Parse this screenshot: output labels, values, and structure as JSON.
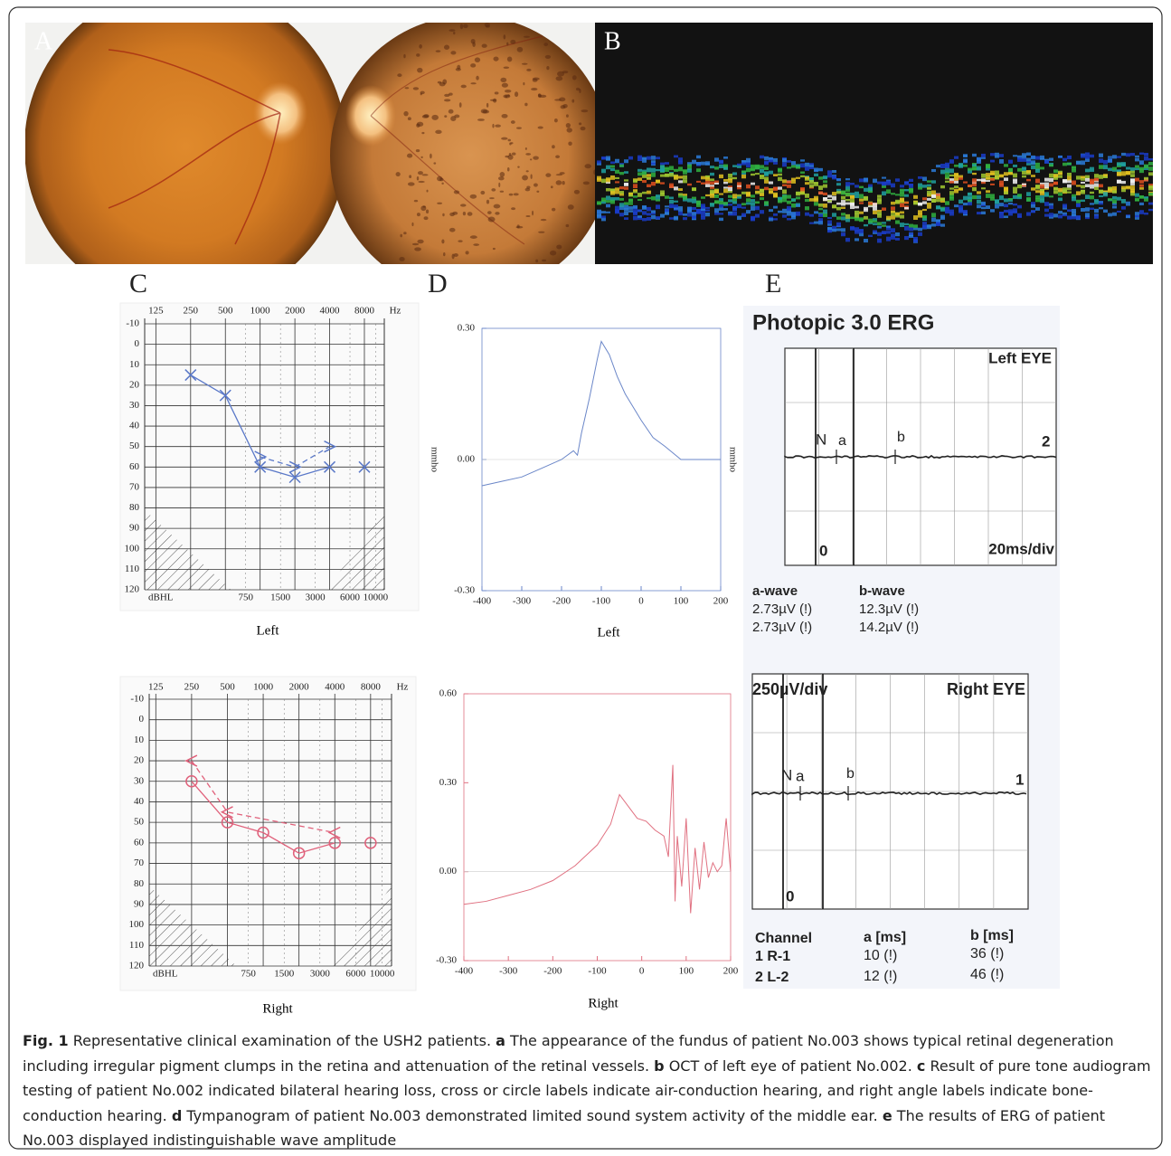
{
  "panel_labels": [
    "A",
    "B",
    "C",
    "D",
    "E"
  ],
  "audiograms": [
    {
      "title": "Left",
      "freq_ticks": [
        125,
        250,
        500,
        1000,
        2000,
        4000,
        8000
      ],
      "freq_unit": "Hz",
      "mid_ticks": [
        750,
        1500,
        3000,
        6000,
        10000
      ],
      "level_unit": "dBHL",
      "xlim": [
        100,
        11900
      ],
      "ylim": [
        -10,
        120
      ],
      "yticks": [
        -10,
        0,
        10,
        20,
        30,
        40,
        50,
        60,
        70,
        80,
        90,
        100,
        110,
        120
      ],
      "color": "#5a78c8",
      "series": [
        {
          "marker": "x",
          "x": [
            250,
            500,
            1000,
            2000,
            4000
          ],
          "values": [
            15,
            25,
            60,
            65,
            60
          ]
        },
        {
          "marker": "x",
          "line": false,
          "x": [
            8000
          ],
          "values": [
            60
          ]
        },
        {
          "marker": ">",
          "dashed": true,
          "x": [
            1000,
            2000,
            4000
          ],
          "values": [
            55,
            60,
            50
          ]
        }
      ]
    },
    {
      "title": "Right",
      "freq_ticks": [
        125,
        250,
        500,
        1000,
        2000,
        4000,
        8000
      ],
      "freq_unit": "Hz",
      "mid_ticks": [
        750,
        1500,
        3000,
        6000,
        10000
      ],
      "level_unit": "dBHL",
      "xlim": [
        110,
        12000
      ],
      "ylim": [
        -10,
        120
      ],
      "yticks": [
        -10,
        0,
        10,
        20,
        30,
        40,
        50,
        60,
        70,
        80,
        90,
        100,
        110,
        120
      ],
      "color": "#e0607a",
      "series": [
        {
          "marker": "o",
          "x": [
            250,
            500,
            1000,
            2000,
            4000
          ],
          "values": [
            30,
            50,
            55,
            65,
            60
          ]
        },
        {
          "marker": "o",
          "line": false,
          "x": [
            8000
          ],
          "values": [
            60
          ]
        },
        {
          "marker": "<",
          "dashed": true,
          "x": [
            250,
            500,
            4000
          ],
          "values": [
            20,
            45,
            55
          ]
        }
      ]
    }
  ],
  "tympanograms": [
    {
      "title": "Left",
      "ylabel": "mmho",
      "color": "#6a86c8",
      "xlim": [
        -400,
        200
      ],
      "ylim": [
        -0.3,
        0.3
      ],
      "xticks": [
        -400,
        -300,
        -200,
        -100,
        0,
        100,
        200
      ],
      "yticks": [
        {
          "value": 0.3,
          "label": "0.30"
        },
        {
          "value": 0,
          "label": "0.00"
        },
        {
          "value": -0.3,
          "label": "-0.30"
        }
      ],
      "x": [
        -400,
        -350,
        -300,
        -250,
        -200,
        -170,
        -160,
        -150,
        -130,
        -110,
        -100,
        -80,
        -60,
        -40,
        -20,
        0,
        30,
        60,
        100,
        150,
        200
      ],
      "values": [
        -0.06,
        -0.05,
        -0.04,
        -0.02,
        0.0,
        0.02,
        0.01,
        0.06,
        0.14,
        0.23,
        0.27,
        0.24,
        0.19,
        0.15,
        0.12,
        0.09,
        0.05,
        0.03,
        0.0,
        0.0,
        0.0
      ]
    },
    {
      "title": "Right",
      "color": "#e07080",
      "xlim": [
        -400,
        200
      ],
      "ylim": [
        -0.3,
        0.6
      ],
      "xticks": [
        -400,
        -300,
        -200,
        -100,
        0,
        100,
        200
      ],
      "yticks": [
        {
          "value": 0.6,
          "label": "0.60"
        },
        {
          "value": 0.3,
          "label": "0.30"
        },
        {
          "value": 0,
          "label": "0.00"
        },
        {
          "value": -0.3,
          "label": "-0.30"
        }
      ],
      "x": [
        -400,
        -350,
        -300,
        -250,
        -200,
        -150,
        -100,
        -70,
        -50,
        -30,
        -10,
        10,
        30,
        50,
        60,
        70,
        75,
        80,
        90,
        100,
        110,
        120,
        130,
        140,
        150,
        160,
        170,
        180,
        190,
        200
      ],
      "values": [
        -0.11,
        -0.1,
        -0.08,
        -0.06,
        -0.03,
        0.02,
        0.09,
        0.16,
        0.26,
        0.22,
        0.18,
        0.17,
        0.14,
        0.12,
        0.05,
        0.36,
        -0.1,
        0.12,
        -0.05,
        0.18,
        -0.14,
        0.08,
        -0.06,
        0.1,
        -0.02,
        0.03,
        0.0,
        0.02,
        0.18,
        0.0
      ]
    }
  ],
  "erg": {
    "title": "Photopic 3.0 ERG",
    "left": {
      "eye": "Left EYE",
      "n": "N",
      "a": "a",
      "b": "b",
      "channel": "2",
      "zero": "0",
      "scale": "20ms/div"
    },
    "amplitudes": {
      "header": [
        "a-wave",
        "b-wave"
      ],
      "rows": [
        [
          "2.73µV (!)",
          "12.3µV (!)"
        ],
        [
          "2.73µV (!)",
          "14.2µV (!)"
        ]
      ]
    },
    "right": {
      "scale": "250µV/div",
      "eye": "Right EYE",
      "n": "N",
      "a": "a",
      "b": "b",
      "channel": "1",
      "zero": "0"
    },
    "latency": {
      "header": [
        "Channel",
        "a [ms]",
        "b [ms]"
      ],
      "rows": [
        [
          "1 R-1",
          "10 (!)",
          "36 (!)"
        ],
        [
          "2 L-2",
          "12 (!)",
          "46 (!)"
        ]
      ]
    }
  },
  "caption": {
    "figure": "Fig. 1",
    "intro": "Representative clinical examination of the USH2 patients.",
    "items": [
      {
        "key": "a",
        "text": "The appearance of the fundus of patient No.003 shows typical retinal degeneration including irregular pigment clumps in the retina and attenuation of the retinal vessels."
      },
      {
        "key": "b",
        "text": "OCT of left eye of patient No.002."
      },
      {
        "key": "c",
        "text": "Result of pure tone audiogram testing of patient No.002 indicated bilateral hearing loss, cross or circle labels indicate air-conduction hearing, and right angle labels indicate bone-conduction hearing."
      },
      {
        "key": "d",
        "text": "Tympanogram of patient No.003 demonstrated limited sound system activity of the middle ear."
      },
      {
        "key": "e",
        "text": "The results of ERG of patient No.003 displayed indistinguishable wave amplitude"
      }
    ]
  }
}
